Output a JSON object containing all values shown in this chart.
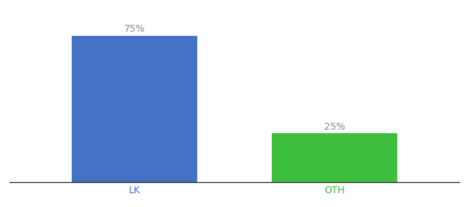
{
  "categories": [
    "LK",
    "OTH"
  ],
  "values": [
    75,
    25
  ],
  "bar_colors": [
    "#4472C4",
    "#3DBF3D"
  ],
  "label_color": "#888888",
  "background_color": "#ffffff",
  "ylim": [
    0,
    85
  ],
  "bar_width": 0.25,
  "label_fontsize": 10,
  "tick_fontsize": 10,
  "x_positions": [
    0.3,
    0.7
  ]
}
